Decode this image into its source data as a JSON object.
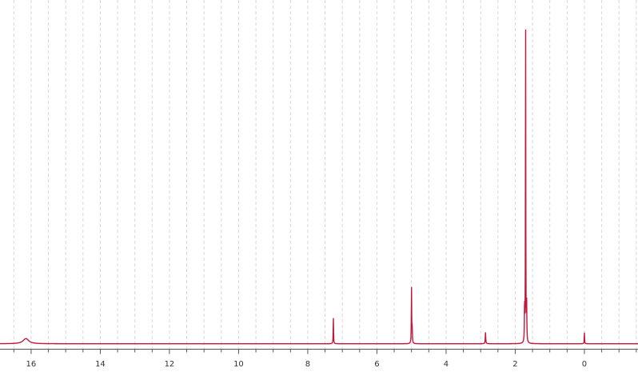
{
  "chart_data": {
    "type": "line",
    "title": "",
    "xlabel": "",
    "ylabel": "",
    "x_reversed": true,
    "xlim": [
      16.9,
      -1.55
    ],
    "ylim": [
      0,
      100
    ],
    "grid": "vertical dashed lines",
    "x_ticks": [
      16,
      14,
      12,
      10,
      8,
      6,
      4,
      2,
      0
    ],
    "tick_labels": [
      "16",
      "14",
      "12",
      "10",
      "8",
      "6",
      "4",
      "2",
      "0"
    ],
    "baseline": 0.3,
    "colors": {
      "line": "#c0183a",
      "grid": "#d8d8d8",
      "axis": "#555555"
    },
    "series": [
      {
        "peaks": [
          {
            "ppm": 16.15,
            "height": 1.5,
            "width": 0.1
          },
          {
            "ppm": 7.26,
            "height": 7.6,
            "width": 0.006
          },
          {
            "ppm": 5.0,
            "height": 16.5,
            "width": 0.006
          },
          {
            "ppm": 4.98,
            "height": 4.5,
            "width": 0.006
          },
          {
            "ppm": 2.86,
            "height": 3.2,
            "width": 0.008
          },
          {
            "ppm": 1.73,
            "height": 10.8,
            "width": 0.006
          },
          {
            "ppm": 1.7,
            "height": 99.4,
            "width": 0.005
          },
          {
            "ppm": 1.67,
            "height": 10.6,
            "width": 0.006
          },
          {
            "ppm": 0.0,
            "height": 3.2,
            "width": 0.006
          }
        ]
      }
    ]
  }
}
